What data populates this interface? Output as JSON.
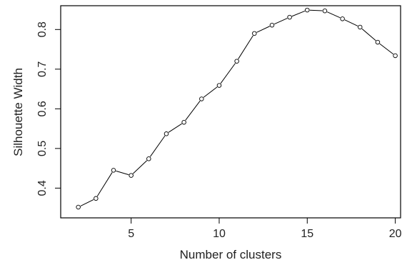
{
  "chart_data": {
    "type": "line",
    "title": "",
    "xlabel": "Number of clusters",
    "ylabel": "Silhouette Width",
    "xlim": [
      1,
      20.3
    ],
    "ylim": [
      0.325,
      0.86
    ],
    "xticks": [
      5,
      10,
      15,
      20
    ],
    "yticks": [
      0.4,
      0.5,
      0.6,
      0.7,
      0.8
    ],
    "grid": false,
    "legend": "none",
    "markers": "open-circle",
    "line_color": "#000000",
    "series": [
      {
        "x": [
          2,
          3,
          4,
          5,
          6,
          7,
          8,
          9,
          10,
          11,
          12,
          13,
          14,
          15,
          16,
          17,
          18,
          19,
          20
        ],
        "values": [
          0.352,
          0.374,
          0.445,
          0.432,
          0.474,
          0.537,
          0.566,
          0.625,
          0.659,
          0.72,
          0.79,
          0.811,
          0.831,
          0.849,
          0.847,
          0.827,
          0.806,
          0.768,
          0.734
        ]
      }
    ]
  }
}
